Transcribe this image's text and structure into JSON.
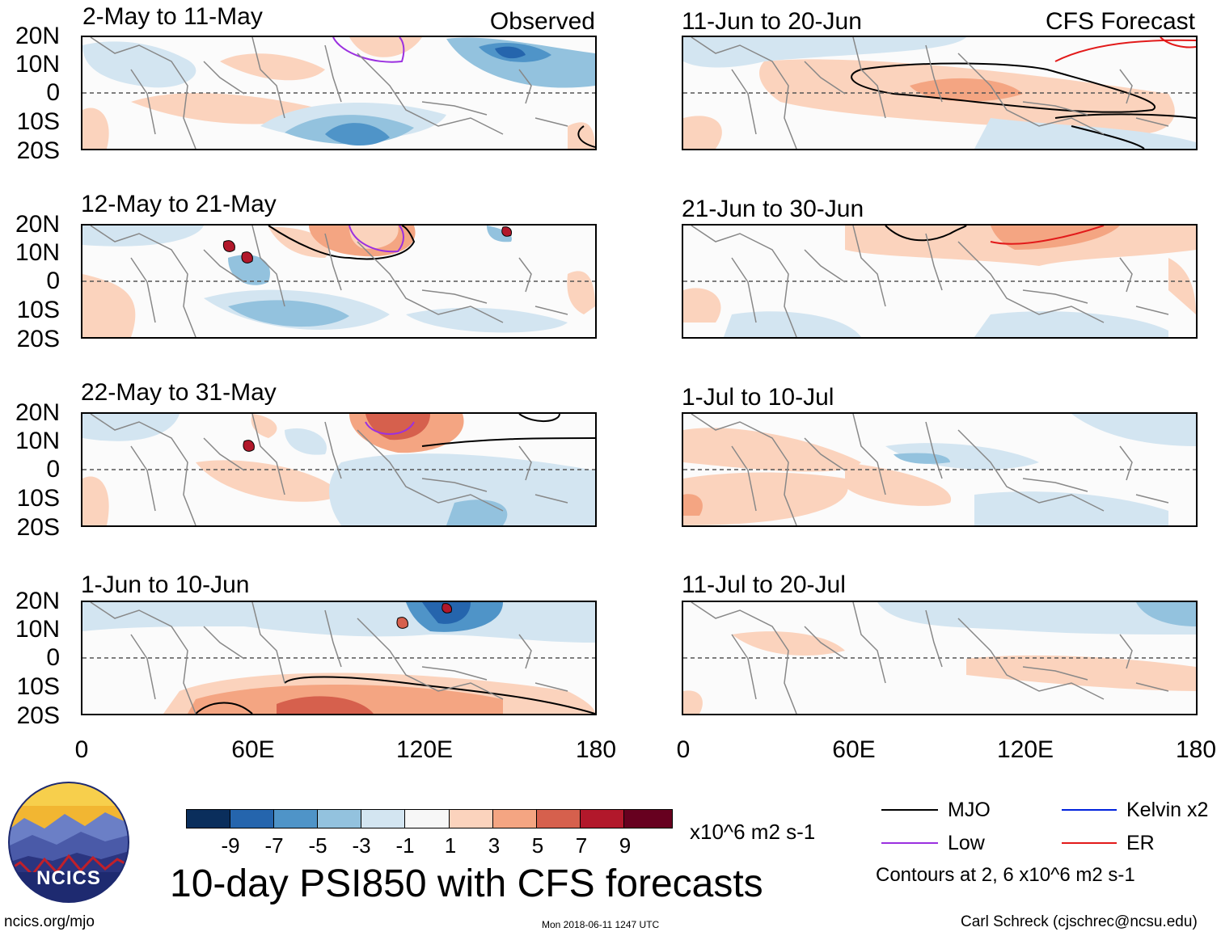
{
  "panels": [
    {
      "title": "2-May to 11-May",
      "label": "Observed"
    },
    {
      "title": "11-Jun to 20-Jun",
      "label": "CFS Forecast"
    },
    {
      "title": "12-May to 21-May",
      "label": ""
    },
    {
      "title": "21-Jun to 30-Jun",
      "label": ""
    },
    {
      "title": "22-May to 31-May",
      "label": ""
    },
    {
      "title": "1-Jul to 10-Jul",
      "label": ""
    },
    {
      "title": "1-Jun to 10-Jun",
      "label": ""
    },
    {
      "title": "11-Jul to 20-Jul",
      "label": ""
    }
  ],
  "axes": {
    "lat_labels": [
      "20N",
      "10N",
      "0",
      "10S",
      "20S"
    ],
    "lon_labels": [
      "0",
      "60E",
      "120E",
      "180"
    ]
  },
  "colorbar": {
    "colors": [
      "#0a2e5c",
      "#2565ad",
      "#4f94c8",
      "#93c2de",
      "#d3e5f1",
      "#f7f7f7",
      "#fbd3bd",
      "#f4a582",
      "#d6604d",
      "#b2182b",
      "#67001f"
    ],
    "ticks": [
      "-9",
      "-7",
      "-5",
      "-3",
      "-1",
      "1",
      "3",
      "5",
      "7",
      "9"
    ],
    "units": "x10^6 m2 s-1"
  },
  "main_title": "10-day PSI850 with CFS forecasts",
  "legend": {
    "items": [
      {
        "label": "MJO",
        "color": "#000000"
      },
      {
        "label": "Kelvin x2",
        "color": "#0022dd"
      },
      {
        "label": "Low",
        "color": "#9b30e0"
      },
      {
        "label": "ER",
        "color": "#e21a1a"
      }
    ],
    "contours_note": "Contours at 2, 6 x10^6 m2 s-1"
  },
  "logo": {
    "text": "NCICS"
  },
  "footer": {
    "url": "ncics.org/mjo",
    "timestamp": "Mon 2018-06-11 1247 UTC",
    "credit": "Carl Schreck (cjschrec@ncsu.edu)"
  }
}
